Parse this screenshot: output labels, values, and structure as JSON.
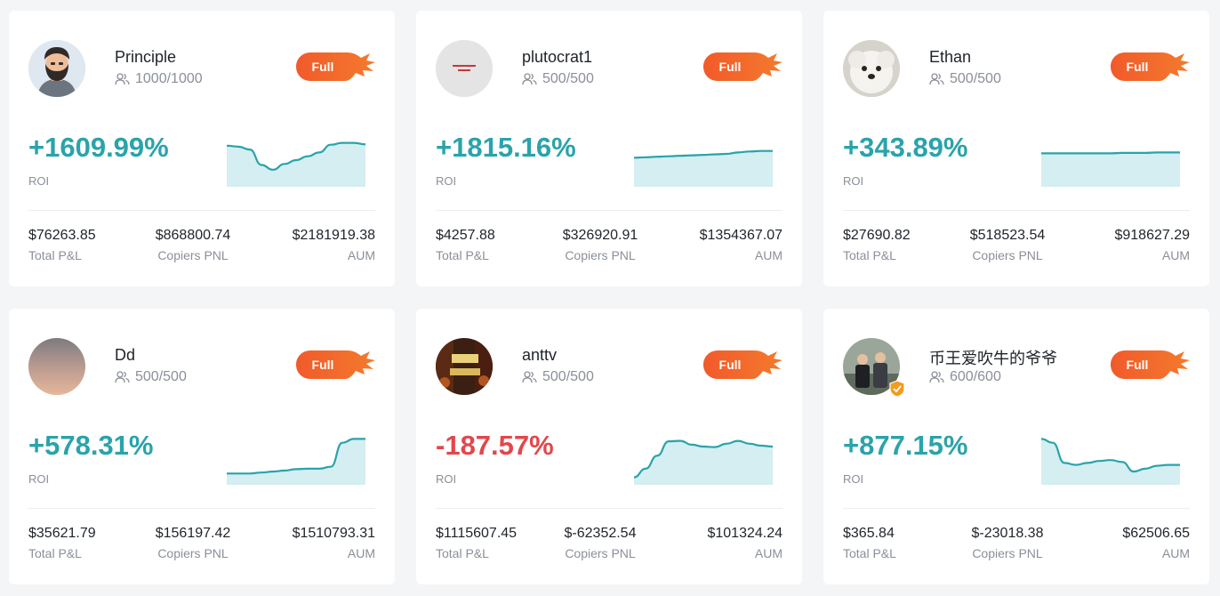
{
  "labels": {
    "full": "Full",
    "roi": "ROI",
    "total_pnl": "Total P&L",
    "copiers_pnl": "Copiers PNL",
    "aum": "AUM"
  },
  "colors": {
    "positive": "#2aa3ab",
    "negative": "#e2474b",
    "full_badge": "#f2542d",
    "chart_fill": "#d4eef1"
  },
  "traders": [
    {
      "name": "Principle",
      "followers": "1000/1000",
      "roi": "+1609.99%",
      "trend": "positive",
      "total_pnl": "$76263.85",
      "copiers_pnl": "$868800.74",
      "aum": "$2181919.38",
      "avatar_icon": "bearded-man-avatar",
      "sparkline": [
        0.8,
        0.78,
        0.72,
        0.4,
        0.3,
        0.42,
        0.5,
        0.58,
        0.66,
        0.82,
        0.86,
        0.86,
        0.83
      ]
    },
    {
      "name": "plutocrat1",
      "followers": "500/500",
      "roi": "+1815.16%",
      "trend": "positive",
      "total_pnl": "$4257.88",
      "copiers_pnl": "$326920.91",
      "aum": "$1354367.07",
      "avatar_icon": "text-image-avatar",
      "sparkline": [
        0.55,
        0.56,
        0.57,
        0.58,
        0.59,
        0.6,
        0.61,
        0.62,
        0.63,
        0.66,
        0.68,
        0.69,
        0.69
      ]
    },
    {
      "name": "Ethan",
      "followers": "500/500",
      "roi": "+343.89%",
      "trend": "positive",
      "total_pnl": "$27690.82",
      "copiers_pnl": "$518523.54",
      "aum": "$918627.29",
      "avatar_icon": "white-dog-avatar",
      "sparkline": [
        0.64,
        0.64,
        0.64,
        0.64,
        0.64,
        0.64,
        0.64,
        0.65,
        0.65,
        0.65,
        0.66,
        0.66,
        0.66
      ]
    },
    {
      "name": "Dd",
      "followers": "500/500",
      "roi": "+578.31%",
      "trend": "positive",
      "total_pnl": "$35621.79",
      "copiers_pnl": "$156197.42",
      "aum": "$1510793.31",
      "avatar_icon": "sunset-sky-avatar",
      "sparkline": [
        0.18,
        0.18,
        0.18,
        0.2,
        0.22,
        0.24,
        0.27,
        0.28,
        0.28,
        0.32,
        0.82,
        0.9,
        0.9
      ]
    },
    {
      "name": "anttv",
      "followers": "500/500",
      "roi": "-187.57%",
      "trend": "negative",
      "total_pnl": "$1115607.45",
      "copiers_pnl": "$-62352.54",
      "aum": "$101324.24",
      "avatar_icon": "movie-poster-avatar",
      "sparkline": [
        0.1,
        0.28,
        0.55,
        0.85,
        0.86,
        0.78,
        0.74,
        0.73,
        0.8,
        0.86,
        0.8,
        0.76,
        0.74
      ]
    },
    {
      "name": "币王爱吹牛的爷爷",
      "followers": "600/600",
      "roi": "+877.15%",
      "trend": "positive",
      "total_pnl": "$365.84",
      "copiers_pnl": "$-23018.38",
      "aum": "$62506.65",
      "avatar_icon": "two-men-avatar",
      "verified_icon": "verified-shield-icon",
      "sparkline": [
        0.9,
        0.82,
        0.4,
        0.36,
        0.4,
        0.44,
        0.46,
        0.42,
        0.22,
        0.28,
        0.34,
        0.36,
        0.36
      ]
    }
  ]
}
